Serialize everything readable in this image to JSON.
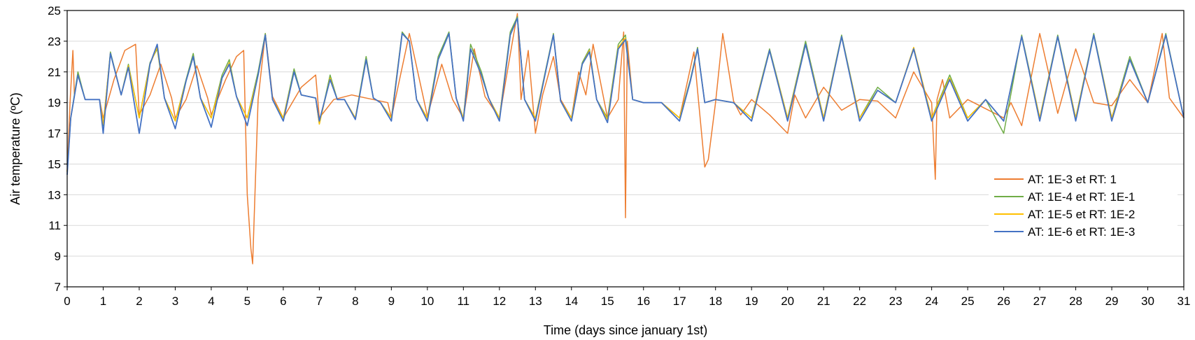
{
  "chart_data": {
    "type": "line",
    "title": "",
    "xlabel": "Time (days since january 1st)",
    "ylabel": "Air temperature (ºC)",
    "xlim": [
      0,
      31
    ],
    "ylim": [
      7,
      25
    ],
    "xticks": [
      0,
      1,
      2,
      3,
      4,
      5,
      6,
      7,
      8,
      9,
      10,
      11,
      12,
      13,
      14,
      15,
      16,
      17,
      18,
      19,
      20,
      21,
      22,
      23,
      24,
      25,
      26,
      27,
      28,
      29,
      30,
      31
    ],
    "yticks": [
      7,
      9,
      11,
      13,
      15,
      17,
      19,
      21,
      23,
      25
    ],
    "grid": true,
    "legend_position": "bottom-right",
    "series": [
      {
        "name": "AT: 1E-3 et RT: 1",
        "color": "#ED7D31",
        "x": [
          0,
          0.08,
          0.16,
          0.2,
          0.3,
          0.5,
          0.9,
          1.0,
          1.3,
          1.6,
          1.9,
          2.0,
          2.3,
          2.6,
          2.9,
          3.0,
          3.3,
          3.6,
          3.9,
          4.0,
          4.4,
          4.7,
          4.9,
          5.0,
          5.1,
          5.15,
          5.3,
          5.5,
          5.7,
          6.0,
          6.5,
          6.9,
          7.0,
          7.4,
          7.9,
          8.5,
          8.9,
          9.0,
          9.5,
          9.9,
          10.0,
          10.4,
          10.7,
          11.0,
          11.3,
          11.6,
          12.0,
          12.4,
          12.5,
          12.6,
          12.8,
          13.0,
          13.2,
          13.5,
          13.7,
          14.0,
          14.2,
          14.4,
          14.6,
          15.0,
          15.3,
          15.45,
          15.5,
          15.55,
          15.7,
          16.0,
          16.5,
          17.0,
          17.4,
          17.7,
          17.8,
          18.0,
          18.2,
          18.5,
          18.7,
          19.0,
          19.5,
          20.0,
          20.2,
          20.5,
          21.0,
          21.5,
          22.0,
          22.5,
          23.0,
          23.5,
          24.0,
          24.1,
          24.15,
          24.3,
          24.5,
          25.0,
          25.5,
          26.0,
          26.2,
          26.5,
          27.0,
          27.5,
          28.0,
          28.5,
          29.0,
          29.5,
          30.0,
          30.4,
          30.6,
          31.0
        ],
        "y": [
          14.5,
          19.0,
          22.4,
          19.5,
          20.8,
          19.2,
          19.2,
          18.0,
          20.5,
          22.4,
          22.8,
          18.2,
          19.5,
          21.5,
          19.3,
          18.0,
          19.2,
          21.4,
          19.3,
          18.2,
          20.5,
          22.0,
          22.4,
          13.0,
          9.5,
          8.5,
          19.2,
          23.5,
          19.4,
          18.0,
          20.0,
          20.8,
          18.0,
          19.2,
          19.5,
          19.2,
          19.0,
          18.0,
          23.5,
          19.2,
          18.1,
          21.5,
          19.2,
          18.0,
          22.5,
          19.4,
          18.0,
          23.5,
          24.8,
          19.2,
          22.4,
          17.0,
          19.5,
          22.0,
          19.2,
          18.0,
          21.0,
          19.5,
          22.8,
          18.0,
          19.2,
          23.6,
          11.5,
          23.0,
          19.2,
          19.0,
          19.0,
          18.0,
          22.3,
          14.8,
          15.3,
          19.0,
          23.5,
          19.1,
          18.2,
          19.2,
          18.2,
          17.0,
          19.5,
          18.0,
          20.0,
          18.5,
          19.2,
          19.1,
          18.0,
          21.0,
          19.0,
          14.0,
          19.2,
          20.5,
          18.0,
          19.2,
          18.6,
          18.0,
          19.0,
          17.5,
          23.5,
          18.3,
          22.5,
          19.0,
          18.8,
          20.5,
          19.0,
          23.5,
          19.3,
          18.0
        ]
      },
      {
        "name": "AT: 1E-4 et RT: 1E-1",
        "color": "#70AD47",
        "x": [
          0,
          0.1,
          0.3,
          0.5,
          0.9,
          1.0,
          1.2,
          1.5,
          1.7,
          2.0,
          2.3,
          2.5,
          2.7,
          3.0,
          3.3,
          3.5,
          3.7,
          4.0,
          4.3,
          4.5,
          4.7,
          5.0,
          5.3,
          5.5,
          5.7,
          6.0,
          6.3,
          6.5,
          6.9,
          7.0,
          7.3,
          7.5,
          7.7,
          8.0,
          8.3,
          8.5,
          8.7,
          9.0,
          9.3,
          9.5,
          9.7,
          10.0,
          10.3,
          10.6,
          10.8,
          11.0,
          11.2,
          11.5,
          11.7,
          12.0,
          12.3,
          12.5,
          12.7,
          13.0,
          13.3,
          13.5,
          13.7,
          14.0,
          14.3,
          14.5,
          14.7,
          15.0,
          15.3,
          15.5,
          15.7,
          16.0,
          16.5,
          17.0,
          17.3,
          17.5,
          17.7,
          18.0,
          18.5,
          19.0,
          19.5,
          20.0,
          20.5,
          21.0,
          21.5,
          22.0,
          22.5,
          23.0,
          23.5,
          24.0,
          24.5,
          25.0,
          25.5,
          26.0,
          26.5,
          27.0,
          27.5,
          28.0,
          28.5,
          29.0,
          29.5,
          30.0,
          30.5,
          31.0
        ],
        "y": [
          14.5,
          18.0,
          21.0,
          19.2,
          19.2,
          17.5,
          22.3,
          19.5,
          21.5,
          18.0,
          21.6,
          22.5,
          19.3,
          17.8,
          20.5,
          22.2,
          19.3,
          18.0,
          20.8,
          21.8,
          19.4,
          18.0,
          21.0,
          23.5,
          19.2,
          18.0,
          21.2,
          19.5,
          19.3,
          17.6,
          20.8,
          19.2,
          19.2,
          18.0,
          22.0,
          19.3,
          19.0,
          18.0,
          23.6,
          23.0,
          19.2,
          18.0,
          22.0,
          23.6,
          19.3,
          18.0,
          22.8,
          21.0,
          19.3,
          18.0,
          23.6,
          24.6,
          19.2,
          18.0,
          21.3,
          23.5,
          19.1,
          18.0,
          21.6,
          22.5,
          19.2,
          18.0,
          22.8,
          23.4,
          19.2,
          19.0,
          19.0,
          18.0,
          20.5,
          22.6,
          19.0,
          19.2,
          19.0,
          18.0,
          22.5,
          18.0,
          23.0,
          18.0,
          23.4,
          18.0,
          20.0,
          19.0,
          22.5,
          18.0,
          20.8,
          18.0,
          19.2,
          17.0,
          23.4,
          18.0,
          23.4,
          18.0,
          23.5,
          18.0,
          22.0,
          19.0,
          23.5,
          18.0
        ]
      },
      {
        "name": "AT: 1E-5 et RT: 1E-2",
        "color": "#FFC000",
        "x": [
          0,
          0.1,
          0.3,
          0.5,
          0.9,
          1.0,
          1.2,
          1.5,
          1.7,
          2.0,
          2.3,
          2.5,
          2.7,
          3.0,
          3.3,
          3.5,
          3.7,
          4.0,
          4.3,
          4.5,
          4.7,
          5.0,
          5.3,
          5.5,
          5.7,
          6.0,
          6.3,
          6.5,
          6.9,
          7.0,
          7.3,
          7.5,
          7.7,
          8.0,
          8.3,
          8.5,
          8.7,
          9.0,
          9.3,
          9.5,
          9.7,
          10.0,
          10.3,
          10.6,
          10.8,
          11.0,
          11.2,
          11.5,
          11.7,
          12.0,
          12.3,
          12.5,
          12.7,
          13.0,
          13.3,
          13.5,
          13.7,
          14.0,
          14.3,
          14.5,
          14.7,
          15.0,
          15.3,
          15.5,
          15.7,
          16.0,
          16.5,
          17.0,
          17.3,
          17.5,
          17.7,
          18.0,
          18.5,
          19.0,
          19.5,
          20.0,
          20.5,
          21.0,
          21.5,
          22.0,
          22.5,
          23.0,
          23.5,
          24.0,
          24.5,
          25.0,
          25.5,
          26.0,
          26.5,
          27.0,
          27.5,
          28.0,
          28.5,
          29.0,
          29.5,
          30.0,
          30.5,
          31.0
        ],
        "y": [
          14.5,
          18.0,
          20.8,
          19.2,
          19.2,
          17.6,
          22.2,
          19.5,
          21.4,
          18.0,
          21.5,
          22.6,
          19.3,
          17.8,
          20.4,
          22.0,
          19.3,
          18.0,
          20.6,
          21.6,
          19.4,
          18.0,
          20.8,
          23.4,
          19.2,
          18.0,
          21.0,
          19.5,
          19.3,
          17.6,
          20.6,
          19.2,
          19.2,
          18.0,
          21.8,
          19.3,
          19.0,
          18.0,
          23.5,
          23.0,
          19.2,
          18.0,
          21.8,
          23.5,
          19.3,
          18.0,
          22.5,
          20.8,
          19.3,
          18.0,
          23.4,
          24.5,
          19.2,
          18.0,
          21.2,
          23.4,
          19.1,
          18.0,
          21.5,
          22.4,
          19.2,
          17.9,
          22.6,
          23.2,
          19.2,
          19.0,
          19.0,
          18.0,
          20.4,
          22.5,
          19.0,
          19.2,
          19.0,
          18.0,
          22.4,
          18.0,
          22.8,
          18.0,
          23.3,
          18.0,
          19.8,
          19.0,
          22.6,
          18.0,
          20.6,
          18.0,
          19.2,
          17.8,
          23.3,
          18.0,
          23.3,
          18.0,
          23.4,
          18.0,
          21.8,
          19.0,
          23.4,
          18.0
        ]
      },
      {
        "name": "AT: 1E-6 et RT: 1E-3",
        "color": "#4472C4",
        "x": [
          0,
          0.1,
          0.3,
          0.5,
          0.9,
          1.0,
          1.2,
          1.5,
          1.7,
          2.0,
          2.3,
          2.5,
          2.7,
          3.0,
          3.3,
          3.5,
          3.7,
          4.0,
          4.3,
          4.5,
          4.7,
          5.0,
          5.3,
          5.5,
          5.7,
          6.0,
          6.3,
          6.5,
          6.9,
          7.0,
          7.3,
          7.5,
          7.7,
          8.0,
          8.3,
          8.5,
          8.7,
          9.0,
          9.3,
          9.5,
          9.7,
          10.0,
          10.3,
          10.6,
          10.8,
          11.0,
          11.2,
          11.5,
          11.7,
          12.0,
          12.3,
          12.5,
          12.7,
          13.0,
          13.3,
          13.5,
          13.7,
          14.0,
          14.3,
          14.5,
          14.7,
          15.0,
          15.3,
          15.5,
          15.7,
          16.0,
          16.5,
          17.0,
          17.3,
          17.5,
          17.7,
          18.0,
          18.5,
          19.0,
          19.5,
          20.0,
          20.5,
          21.0,
          21.5,
          22.0,
          22.5,
          23.0,
          23.5,
          24.0,
          24.5,
          25.0,
          25.5,
          26.0,
          26.5,
          27.0,
          27.5,
          28.0,
          28.5,
          29.0,
          29.5,
          30.0,
          30.5,
          31.0
        ],
        "y": [
          14.3,
          18.0,
          20.8,
          19.2,
          19.2,
          17.0,
          22.2,
          19.5,
          21.3,
          17.0,
          21.5,
          22.8,
          19.3,
          17.3,
          20.4,
          22.0,
          19.3,
          17.4,
          20.6,
          21.5,
          19.4,
          17.5,
          20.8,
          23.4,
          19.2,
          17.8,
          21.0,
          19.5,
          19.3,
          17.8,
          20.5,
          19.2,
          19.2,
          17.9,
          21.8,
          19.3,
          19.0,
          17.8,
          23.5,
          23.0,
          19.2,
          17.8,
          21.8,
          23.5,
          19.3,
          17.8,
          22.5,
          20.8,
          19.3,
          17.8,
          23.4,
          24.5,
          19.2,
          17.8,
          21.2,
          23.4,
          19.1,
          17.8,
          21.5,
          22.3,
          19.2,
          17.7,
          22.5,
          23.1,
          19.2,
          19.0,
          19.0,
          17.8,
          20.4,
          22.5,
          19.0,
          19.2,
          19.0,
          17.8,
          22.4,
          17.8,
          22.8,
          17.8,
          23.3,
          17.8,
          19.8,
          19.0,
          22.5,
          17.8,
          20.5,
          17.8,
          19.2,
          17.8,
          23.3,
          17.8,
          23.3,
          17.8,
          23.4,
          17.8,
          21.8,
          19.0,
          23.4,
          18.0
        ]
      }
    ]
  }
}
